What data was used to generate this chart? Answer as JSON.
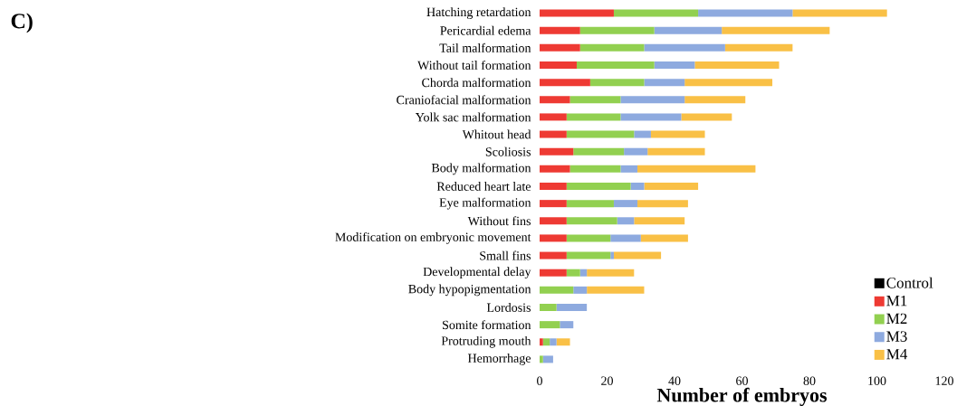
{
  "chart_data": {
    "type": "bar",
    "orientation": "horizontal",
    "stacked": true,
    "annotations": [
      "C)"
    ],
    "xlabel": "Number of embryos",
    "categories": [
      "Hatching retardation",
      "Pericardial edema",
      "Tail malformation",
      "Without tail formation",
      "Chorda malformation",
      "Craniofacial malformation",
      "Yolk sac malformation",
      "Whitout head",
      "Scoliosis",
      "Body malformation",
      "Reduced heart late",
      "Eye malformation",
      "Without fins",
      "Modification on embryonic movement",
      "Small fins",
      "Developmental delay",
      "Body hypopigmentation",
      "Lordosis",
      "Somite formation",
      "Protruding mouth",
      "Hemorrhage"
    ],
    "series": [
      {
        "name": "Control",
        "color": "#000000",
        "values": [
          0,
          0,
          0,
          0,
          0,
          0,
          0,
          0,
          0,
          0,
          0,
          0,
          0,
          0,
          0,
          0,
          0,
          0,
          0,
          0,
          0
        ]
      },
      {
        "name": "M1",
        "color": "#ee3a33",
        "values": [
          22,
          12,
          12,
          11,
          15,
          9,
          8,
          8,
          10,
          9,
          8,
          8,
          8,
          8,
          8,
          8,
          0,
          0,
          0,
          1,
          0
        ]
      },
      {
        "name": "M2",
        "color": "#92d050",
        "values": [
          25,
          22,
          19,
          23,
          16,
          15,
          16,
          20,
          15,
          15,
          19,
          14,
          15,
          13,
          13,
          4,
          10,
          5,
          6,
          2,
          1
        ]
      },
      {
        "name": "M3",
        "color": "#8eaadf",
        "values": [
          28,
          20,
          24,
          12,
          12,
          19,
          18,
          5,
          7,
          5,
          4,
          7,
          5,
          9,
          1,
          2,
          4,
          9,
          4,
          2,
          3
        ]
      },
      {
        "name": "M4",
        "color": "#f9c046",
        "values": [
          28,
          32,
          20,
          25,
          26,
          18,
          15,
          16,
          17,
          35,
          16,
          15,
          15,
          14,
          14,
          14,
          17,
          0,
          0,
          4,
          0
        ]
      }
    ],
    "xlim": [
      0,
      120
    ],
    "xticks": [
      0,
      20,
      40,
      60,
      80,
      100,
      120
    ],
    "legend": "bottom right"
  }
}
